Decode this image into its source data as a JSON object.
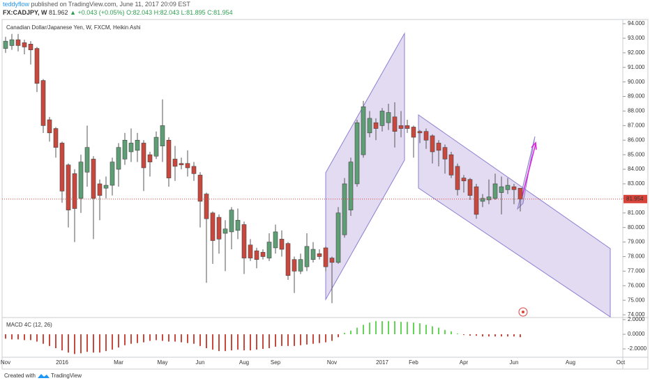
{
  "header": {
    "user": "teddyflow",
    "published": "published on TradingView.com, June 11, 2017 20:09 EST",
    "symbol": "FX:CADJPY, W",
    "price": "81.962",
    "change": "▲ +0.043 (+0.05%)",
    "ohlc": "O:82.043 H:82.043 L:81.895 C:81.954"
  },
  "footer": {
    "created": "Created with",
    "brand": "TradingView"
  },
  "chart_data": [
    {
      "type": "candlestick",
      "title": "Canadian Dollar/Japanese Yen, W, FXCM, Heikin Ashi",
      "categories": [
        "Nov",
        null,
        null,
        null,
        null,
        null,
        null,
        null,
        null,
        "2016",
        null,
        null,
        null,
        null,
        null,
        null,
        null,
        null,
        "Mar",
        null,
        null,
        null,
        null,
        null,
        null,
        "May",
        null,
        null,
        null,
        null,
        null,
        "Jun",
        null,
        null,
        null,
        null,
        null,
        null,
        "Aug",
        null,
        null,
        null,
        null,
        "Sep",
        null,
        null,
        null,
        null,
        null,
        null,
        null,
        null,
        "Nov",
        null,
        null,
        null,
        null,
        null,
        null,
        null,
        "2017",
        null,
        null,
        null,
        null,
        "Feb",
        null,
        null,
        null,
        null,
        null,
        null,
        null,
        "Apr",
        null,
        null,
        null,
        null,
        null,
        null,
        null,
        "Jun",
        null,
        null,
        null,
        null,
        null,
        null,
        null,
        null,
        "Aug",
        null,
        null,
        null,
        null,
        null,
        null,
        null,
        "Oct"
      ],
      "open": [
        92.3,
        92.5,
        92.9,
        92.7,
        92.6,
        92.3,
        90.1,
        87.4,
        86.8,
        85.8,
        84.3,
        83.7,
        82.0,
        83.8,
        84.7,
        83.0,
        82.7,
        82.9,
        84.0,
        84.7,
        85.2,
        85.3,
        85.8,
        85.0,
        84.9,
        85.6,
        86.0,
        84.7,
        84.4,
        84.4,
        84.2,
        83.6,
        82.3,
        81.0,
        80.7,
        79.6,
        79.7,
        79.8,
        80.2,
        78.8,
        78.4,
        78.3,
        77.9,
        78.6,
        79.2,
        78.9,
        77.8,
        77.0,
        77.3,
        77.8,
        78.2,
        78.6,
        77.9,
        77.6,
        79.5,
        81.2,
        83.0,
        85.0,
        86.5,
        87.2,
        87.0,
        87.2,
        87.6,
        87.0,
        87.0,
        86.9,
        86.6,
        86.6,
        86.3,
        85.8,
        85.5,
        85.0,
        84.2,
        83.4,
        83.3,
        82.8,
        81.8,
        81.9,
        82.0,
        82.4,
        82.6,
        82.8,
        82.7,
        null,
        null,
        null,
        null,
        null,
        null,
        null,
        null,
        null,
        null,
        null,
        null,
        null,
        null,
        null,
        null
      ],
      "high": [
        93.1,
        93.3,
        93.3,
        92.9,
        92.8,
        92.4,
        90.2,
        87.6,
        86.9,
        85.9,
        84.4,
        84.0,
        85.0,
        87.0,
        84.9,
        83.3,
        83.5,
        84.8,
        85.8,
        86.5,
        86.8,
        86.5,
        86.0,
        85.2,
        86.6,
        88.8,
        86.2,
        85.6,
        84.8,
        85.3,
        84.5,
        83.8,
        82.4,
        81.1,
        80.9,
        80.5,
        81.4,
        81.3,
        80.4,
        79.2,
        78.6,
        78.5,
        79.6,
        80.2,
        79.8,
        79.0,
        78.0,
        78.2,
        79.6,
        79.0,
        78.5,
        78.7,
        78.0,
        81.4,
        83.4,
        84.8,
        87.4,
        88.7,
        88.0,
        87.5,
        88.2,
        88.5,
        88.6,
        88.0,
        87.4,
        87.0,
        86.7,
        86.8,
        86.4,
        86.0,
        85.7,
        85.2,
        84.4,
        83.6,
        83.4,
        83.0,
        82.3,
        83.3,
        83.7,
        83.5,
        83.4,
        83.0,
        82.7,
        null,
        null,
        null,
        null,
        null,
        null,
        null,
        null,
        null,
        null,
        null,
        null,
        null,
        null,
        null,
        null
      ],
      "low": [
        92.0,
        92.2,
        92.1,
        91.9,
        91.2,
        89.3,
        86.5,
        85.9,
        84.8,
        81.7,
        80.0,
        79.0,
        81.0,
        82.8,
        79.2,
        80.5,
        82.0,
        82.2,
        82.8,
        84.3,
        84.5,
        84.5,
        82.5,
        83.5,
        84.7,
        84.5,
        82.8,
        83.2,
        84.0,
        83.5,
        83.2,
        80.0,
        76.2,
        77.5,
        78.2,
        77.0,
        78.5,
        79.2,
        76.8,
        77.7,
        77.2,
        77.8,
        77.7,
        78.2,
        78.0,
        76.4,
        75.5,
        76.8,
        77.0,
        77.6,
        77.8,
        77.0,
        74.8,
        77.5,
        79.3,
        80.8,
        82.8,
        84.8,
        86.2,
        86.0,
        86.6,
        86.7,
        85.5,
        86.2,
        86.5,
        84.8,
        85.8,
        85.4,
        84.4,
        84.2,
        83.7,
        83.4,
        82.2,
        82.4,
        81.9,
        80.6,
        81.4,
        81.6,
        81.9,
        80.9,
        82.3,
        81.6,
        81.1,
        null,
        null,
        null,
        null,
        null,
        null,
        null,
        null,
        null,
        null,
        null,
        null,
        null,
        null,
        null,
        null
      ],
      "close": [
        92.8,
        92.9,
        92.5,
        92.4,
        92.2,
        89.9,
        87.0,
        86.5,
        85.5,
        82.5,
        81.2,
        81.3,
        84.5,
        85.5,
        82.0,
        82.2,
        82.9,
        84.5,
        85.5,
        86.0,
        85.8,
        86.0,
        84.1,
        84.5,
        86.2,
        87.0,
        83.4,
        84.2,
        84.3,
        84.1,
        83.7,
        81.8,
        80.6,
        79.1,
        79.2,
        79.9,
        81.2,
        80.5,
        77.9,
        77.9,
        77.8,
        78.0,
        79.0,
        79.7,
        78.5,
        76.7,
        77.0,
        77.8,
        78.7,
        78.5,
        78.0,
        77.3,
        77.6,
        81.0,
        83.0,
        84.5,
        87.2,
        88.3,
        87.5,
        86.8,
        88.0,
        87.9,
        86.6,
        86.8,
        86.8,
        86.2,
        86.5,
        86.0,
        85.2,
        85.3,
        84.7,
        83.6,
        82.6,
        83.2,
        82.2,
        80.9,
        82.0,
        82.1,
        83.0,
        82.8,
        82.9,
        82.6,
        81.95,
        null,
        null,
        null,
        null,
        null,
        null,
        null,
        null,
        null,
        null,
        null,
        null,
        null,
        null,
        null,
        null
      ],
      "up_color": "#5d9e74",
      "down_color": "#c9483d",
      "last_price": 81.954,
      "last_price_color": "#d9443a",
      "ylim": [
        73.86,
        94.29
      ],
      "yticks": [
        {
          "value": 74,
          "label": "74.000"
        },
        {
          "value": 75,
          "label": "75.000"
        },
        {
          "value": 76,
          "label": "76.000"
        },
        {
          "value": 77,
          "label": "77.000"
        },
        {
          "value": 78,
          "label": "78.000"
        },
        {
          "value": 79,
          "label": "79.000"
        },
        {
          "value": 80,
          "label": "80.000"
        },
        {
          "value": 81,
          "label": "81.000"
        },
        {
          "value": 82,
          "label": "82.000"
        },
        {
          "value": 83,
          "label": "83.000"
        },
        {
          "value": 84,
          "label": "84.000"
        },
        {
          "value": 85,
          "label": "85.000"
        },
        {
          "value": 86,
          "label": "86.000"
        },
        {
          "value": 87,
          "label": "87.000"
        },
        {
          "value": 88,
          "label": "88.000"
        },
        {
          "value": 89,
          "label": "89.000"
        },
        {
          "value": 90,
          "label": "90.000"
        },
        {
          "value": 91,
          "label": "91.000"
        },
        {
          "value": 92,
          "label": "92.000"
        },
        {
          "value": 93,
          "label": "93.000"
        },
        {
          "value": 94,
          "label": "94.000"
        }
      ]
    },
    {
      "type": "bar",
      "title": "MACD 4C (12, 26)",
      "values": [
        -0.6,
        -0.7,
        -0.7,
        -0.8,
        -0.8,
        -1.0,
        -1.3,
        -1.6,
        -1.9,
        -2.2,
        -2.5,
        -2.7,
        -2.6,
        -2.4,
        -2.5,
        -2.5,
        -2.3,
        -2.1,
        -1.8,
        -1.5,
        -1.3,
        -1.2,
        -1.1,
        -0.9,
        -0.8,
        -0.9,
        -1.0,
        -1.0,
        -1.1,
        -1.2,
        -1.3,
        -1.6,
        -1.9,
        -2.1,
        -2.3,
        -2.3,
        -2.2,
        -2.1,
        -2.2,
        -2.2,
        -2.1,
        -2.0,
        -1.9,
        -1.7,
        -1.6,
        -1.6,
        -1.6,
        -1.5,
        -1.4,
        -1.3,
        -1.2,
        -1.1,
        -0.9,
        -0.4,
        0.2,
        0.5,
        0.9,
        1.3,
        1.6,
        1.8,
        1.8,
        1.8,
        1.8,
        1.7,
        1.7,
        1.6,
        1.5,
        1.3,
        1.1,
        0.9,
        0.6,
        0.4,
        0.1,
        -0.1,
        -0.2,
        -0.2,
        -0.3,
        -0.3,
        -0.3,
        -0.3,
        -0.3,
        -0.3,
        -0.4
      ],
      "positive_color": "#63d655",
      "negative_color": "#c9483d",
      "ylim": [
        -3.14,
        2.29
      ],
      "yticks": [
        {
          "value": 2,
          "label": "2.0000"
        },
        {
          "value": 0,
          "label": "0.0000"
        },
        {
          "value": -2,
          "label": "-2.0000"
        }
      ]
    }
  ]
}
